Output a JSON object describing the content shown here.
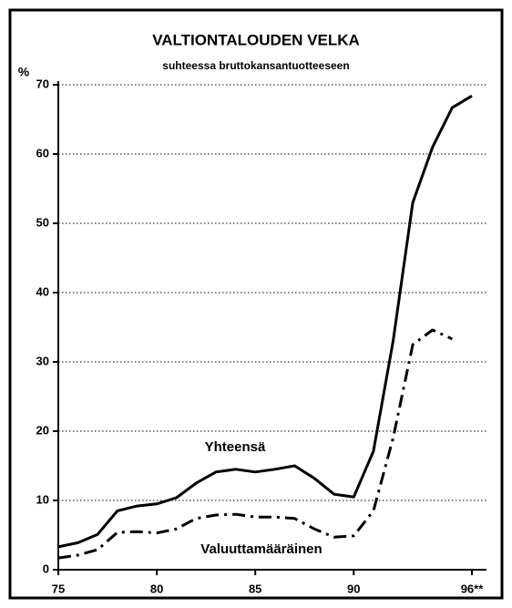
{
  "chart_data": {
    "type": "line",
    "title": "VALTIONTALOUDEN VELKA",
    "subtitle": "suhteessa bruttokansantuotteeseen",
    "y_label": "%",
    "x": [
      75,
      76,
      77,
      78,
      79,
      80,
      81,
      82,
      83,
      84,
      85,
      86,
      87,
      88,
      89,
      90,
      91,
      92,
      93,
      94,
      95,
      96
    ],
    "series": [
      {
        "name": "Yhteensä",
        "color": "#000000",
        "line_style": "solid",
        "values": [
          3.3,
          3.9,
          5.1,
          8.5,
          9.2,
          9.5,
          10.4,
          12.5,
          14.1,
          14.5,
          14.1,
          14.5,
          15.0,
          13.2,
          10.9,
          10.5,
          17.1,
          33,
          53,
          61,
          66.7,
          68.4
        ]
      },
      {
        "name": "Valuuttamääräinen",
        "color": "#000000",
        "line_style": "dashdot",
        "values": [
          1.7,
          2.1,
          2.9,
          5.4,
          5.5,
          5.3,
          5.9,
          7.4,
          7.9,
          8.0,
          7.6,
          7.6,
          7.4,
          5.9,
          4.7,
          4.9,
          8.5,
          19,
          32.5,
          34.6,
          33.3,
          null
        ]
      }
    ],
    "xlim": [
      75,
      96
    ],
    "xticks": [
      75,
      80,
      85,
      90,
      {
        "value": 96,
        "label": "96**"
      }
    ],
    "ylim": [
      0,
      70
    ],
    "yticks": [
      0,
      10,
      20,
      30,
      40,
      50,
      60,
      70
    ],
    "grid": true
  }
}
